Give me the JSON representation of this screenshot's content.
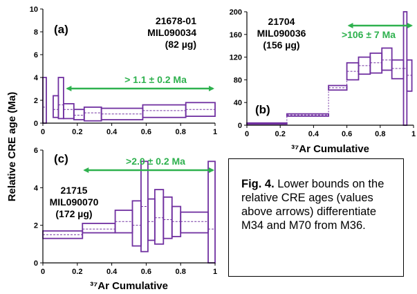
{
  "colors": {
    "box": "#7030a0",
    "median": "#7030a0",
    "arrow": "#2eb14e",
    "axis": "#000000"
  },
  "ylabel": "Relative CRE age (Ma)",
  "caption": {
    "title": "Fig. 4.",
    "text": " Lower bounds on the relative CRE ages (values above arrows) differentiate M34 and M70 from M36."
  },
  "chart_data": [
    {
      "type": "box",
      "panel": "(a)",
      "sample": "21678-01",
      "meteorite": "MIL090034",
      "mass": "(82 µg)",
      "arrow_label": "> 1.1 ± 0.2 Ma",
      "arrow_range": [
        0.13,
        1.0
      ],
      "xlabel": "",
      "xlim": [
        0,
        1
      ],
      "ylim": [
        0,
        10
      ],
      "xticks": [
        "0",
        "0.2",
        "0.4",
        "0.6",
        "0.8",
        "1"
      ],
      "yticks": [
        "0",
        "2",
        "4",
        "6",
        "8",
        "10"
      ],
      "steps": [
        {
          "x0": 0.0,
          "x1": 0.02,
          "low": 0.0,
          "high": 4.0,
          "mid": 1.4
        },
        {
          "x0": 0.06,
          "x1": 0.09,
          "low": 0.5,
          "high": 2.4,
          "mid": 1.2
        },
        {
          "x0": 0.09,
          "x1": 0.12,
          "low": 0.4,
          "high": 4.0,
          "mid": 1.6
        },
        {
          "x0": 0.12,
          "x1": 0.18,
          "low": 0.4,
          "high": 1.7,
          "mid": 1.2
        },
        {
          "x0": 0.18,
          "x1": 0.24,
          "low": 0.3,
          "high": 1.2,
          "mid": 0.7
        },
        {
          "x0": 0.24,
          "x1": 0.34,
          "low": 0.2,
          "high": 1.4,
          "mid": 0.9
        },
        {
          "x0": 0.34,
          "x1": 0.58,
          "low": 0.3,
          "high": 1.3,
          "mid": 0.8
        },
        {
          "x0": 0.58,
          "x1": 0.83,
          "low": 0.5,
          "high": 1.6,
          "mid": 1.1
        },
        {
          "x0": 0.83,
          "x1": 1.0,
          "low": 0.6,
          "high": 1.8,
          "mid": 1.2
        }
      ]
    },
    {
      "type": "box",
      "panel": "(b)",
      "sample": "21704",
      "meteorite": "MIL090036",
      "mass": "(156 µg)",
      "arrow_label": ">106 ± 7 Ma",
      "arrow_range": [
        0.6,
        1.0
      ],
      "xlabel": "³⁷Ar Cumulative",
      "xlim": [
        0,
        1
      ],
      "ylim": [
        0,
        200
      ],
      "xticks": [
        "0",
        "0.2",
        "0.4",
        "0.6",
        "0.8",
        "1"
      ],
      "yticks": [
        "0",
        "40",
        "80",
        "120",
        "160",
        "200"
      ],
      "steps": [
        {
          "x0": 0.0,
          "x1": 0.24,
          "low": 2,
          "high": 4,
          "mid": 3
        },
        {
          "x0": 0.24,
          "x1": 0.49,
          "low": 16,
          "high": 20,
          "mid": 18
        },
        {
          "x0": 0.49,
          "x1": 0.6,
          "low": 62,
          "high": 70,
          "mid": 66
        },
        {
          "x0": 0.6,
          "x1": 0.67,
          "low": 80,
          "high": 110,
          "mid": 95
        },
        {
          "x0": 0.67,
          "x1": 0.74,
          "low": 90,
          "high": 120,
          "mid": 105
        },
        {
          "x0": 0.74,
          "x1": 0.81,
          "low": 92,
          "high": 127,
          "mid": 110
        },
        {
          "x0": 0.81,
          "x1": 0.87,
          "low": 97,
          "high": 136,
          "mid": 115
        },
        {
          "x0": 0.87,
          "x1": 0.94,
          "low": 82,
          "high": 115,
          "mid": 100
        },
        {
          "x0": 0.94,
          "x1": 0.96,
          "low": 0,
          "high": 200,
          "mid": 100
        },
        {
          "x0": 0.96,
          "x1": 0.99,
          "low": 60,
          "high": 115,
          "mid": 88
        }
      ]
    },
    {
      "type": "box",
      "panel": "(c)",
      "sample": "21715",
      "meteorite": "MIL090070",
      "mass": "(172 µg)",
      "arrow_label": ">2.0 ± 0.2 Ma",
      "arrow_range": [
        0.23,
        1.0
      ],
      "xlabel": "³⁷Ar Cumulative",
      "xlim": [
        0,
        1
      ],
      "ylim": [
        0,
        6
      ],
      "xticks": [
        "0",
        "0.2",
        "0.4",
        "0.6",
        "0.8",
        "1"
      ],
      "yticks": [
        "0",
        "2",
        "4",
        "6"
      ],
      "steps": [
        {
          "x0": 0.0,
          "x1": 0.23,
          "low": 1.3,
          "high": 1.7,
          "mid": 1.5
        },
        {
          "x0": 0.23,
          "x1": 0.42,
          "low": 1.6,
          "high": 2.1,
          "mid": 1.8
        },
        {
          "x0": 0.42,
          "x1": 0.52,
          "low": 1.6,
          "high": 2.8,
          "mid": 2.2
        },
        {
          "x0": 0.52,
          "x1": 0.57,
          "low": 0.9,
          "high": 3.3,
          "mid": 2.0
        },
        {
          "x0": 0.57,
          "x1": 0.61,
          "low": 0.6,
          "high": 5.4,
          "mid": 3.0
        },
        {
          "x0": 0.61,
          "x1": 0.65,
          "low": 1.2,
          "high": 3.4,
          "mid": 2.2
        },
        {
          "x0": 0.65,
          "x1": 0.7,
          "low": 1.0,
          "high": 3.9,
          "mid": 2.4
        },
        {
          "x0": 0.7,
          "x1": 0.75,
          "low": 1.3,
          "high": 3.5,
          "mid": 2.3
        },
        {
          "x0": 0.75,
          "x1": 0.8,
          "low": 1.4,
          "high": 3.0,
          "mid": 2.2
        },
        {
          "x0": 0.8,
          "x1": 0.96,
          "low": 1.6,
          "high": 2.7,
          "mid": 2.2
        },
        {
          "x0": 0.96,
          "x1": 1.0,
          "low": 0.0,
          "high": 5.4,
          "mid": 1.8
        }
      ]
    }
  ]
}
